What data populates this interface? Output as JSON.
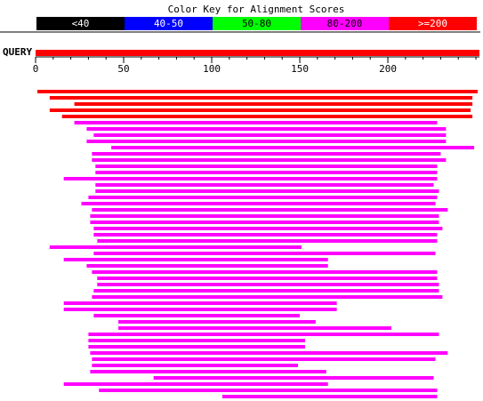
{
  "chart_data": {
    "type": "alignment",
    "title": "Color Key for Alignment Scores",
    "query_label": "QUERY",
    "xlim": [
      0,
      252
    ],
    "xticks": [
      0,
      50,
      100,
      150,
      200
    ],
    "minor_tick_step": 10,
    "series": [
      {
        "name": "<40",
        "color": "#000000",
        "ranges": []
      },
      {
        "name": "40-50",
        "color": "#0000ff",
        "ranges": []
      },
      {
        "name": "50-80",
        "color": "#00ff00",
        "ranges": []
      },
      {
        "name": "80-200",
        "color": "#ff00ff",
        "ranges": [
          [
            22,
            228
          ],
          [
            29,
            233
          ],
          [
            33,
            233
          ],
          [
            29,
            233
          ],
          [
            43,
            249
          ],
          [
            32,
            230
          ],
          [
            32,
            233
          ],
          [
            34,
            228
          ],
          [
            34,
            228
          ],
          [
            16,
            228
          ],
          [
            34,
            226
          ],
          [
            34,
            229
          ],
          [
            30,
            228
          ],
          [
            26,
            227
          ],
          [
            32,
            234
          ],
          [
            31,
            229
          ],
          [
            31,
            229
          ],
          [
            33,
            231
          ],
          [
            33,
            228
          ],
          [
            35,
            228
          ],
          [
            8,
            151
          ],
          [
            33,
            227
          ],
          [
            16,
            166
          ],
          [
            29,
            166
          ],
          [
            32,
            228
          ],
          [
            35,
            228
          ],
          [
            35,
            229
          ],
          [
            33,
            229
          ],
          [
            32,
            231
          ],
          [
            16,
            171
          ],
          [
            16,
            171
          ],
          [
            33,
            150
          ],
          [
            47,
            159
          ],
          [
            47,
            202
          ],
          [
            30,
            229
          ],
          [
            30,
            153
          ],
          [
            30,
            153
          ],
          [
            31,
            234
          ],
          [
            32,
            227
          ],
          [
            32,
            149
          ],
          [
            31,
            165
          ],
          [
            67,
            226
          ],
          [
            16,
            166
          ],
          [
            36,
            228
          ],
          [
            106,
            228
          ]
        ]
      },
      {
        "name": ">=200",
        "color": "#ff0000",
        "ranges": [
          [
            1,
            251
          ],
          [
            8,
            248
          ],
          [
            22,
            248
          ],
          [
            8,
            247
          ],
          [
            15,
            248
          ]
        ]
      }
    ]
  }
}
